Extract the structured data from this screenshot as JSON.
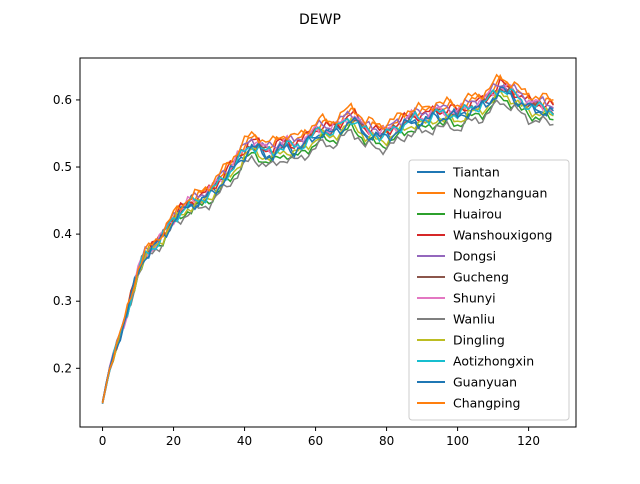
{
  "chart_data": {
    "type": "line",
    "title": "DEWP",
    "xlabel": "",
    "ylabel": "",
    "xlim": [
      -6.35,
      133.35
    ],
    "ylim": [
      0.1125,
      0.6625
    ],
    "xticks": [
      0,
      20,
      40,
      60,
      80,
      100,
      120
    ],
    "yticks": [
      0.2,
      0.3,
      0.4,
      0.5,
      0.6
    ],
    "ytick_labels": [
      "0.2",
      "0.3",
      "0.4",
      "0.5",
      "0.6"
    ],
    "grid": false,
    "legend_position": "lower-right",
    "x": {
      "start": 0,
      "end": 127,
      "step": 1
    },
    "base_anchors": [
      [
        0,
        0.148
      ],
      [
        2,
        0.2
      ],
      [
        4,
        0.235
      ],
      [
        6,
        0.265
      ],
      [
        8,
        0.305
      ],
      [
        10,
        0.345
      ],
      [
        12,
        0.368
      ],
      [
        14,
        0.378
      ],
      [
        16,
        0.39
      ],
      [
        18,
        0.405
      ],
      [
        20,
        0.42
      ],
      [
        22,
        0.432
      ],
      [
        24,
        0.443
      ],
      [
        26,
        0.447
      ],
      [
        28,
        0.45
      ],
      [
        30,
        0.46
      ],
      [
        32,
        0.47
      ],
      [
        34,
        0.48
      ],
      [
        36,
        0.493
      ],
      [
        38,
        0.508
      ],
      [
        40,
        0.52
      ],
      [
        42,
        0.53
      ],
      [
        44,
        0.528
      ],
      [
        46,
        0.52
      ],
      [
        48,
        0.518
      ],
      [
        50,
        0.528
      ],
      [
        52,
        0.532
      ],
      [
        54,
        0.526
      ],
      [
        56,
        0.53
      ],
      [
        58,
        0.54
      ],
      [
        60,
        0.548
      ],
      [
        62,
        0.552
      ],
      [
        64,
        0.55
      ],
      [
        66,
        0.556
      ],
      [
        68,
        0.563
      ],
      [
        70,
        0.57
      ],
      [
        72,
        0.565
      ],
      [
        74,
        0.55
      ],
      [
        76,
        0.548
      ],
      [
        78,
        0.545
      ],
      [
        80,
        0.548
      ],
      [
        82,
        0.552
      ],
      [
        84,
        0.558
      ],
      [
        86,
        0.568
      ],
      [
        88,
        0.57
      ],
      [
        90,
        0.568
      ],
      [
        92,
        0.572
      ],
      [
        94,
        0.58
      ],
      [
        96,
        0.575
      ],
      [
        98,
        0.578
      ],
      [
        100,
        0.576
      ],
      [
        102,
        0.582
      ],
      [
        104,
        0.586
      ],
      [
        106,
        0.589
      ],
      [
        108,
        0.596
      ],
      [
        110,
        0.605
      ],
      [
        112,
        0.615
      ],
      [
        114,
        0.612
      ],
      [
        116,
        0.605
      ],
      [
        118,
        0.595
      ],
      [
        120,
        0.59
      ],
      [
        122,
        0.588
      ],
      [
        124,
        0.585
      ],
      [
        126,
        0.583
      ],
      [
        127,
        0.582
      ]
    ],
    "series": [
      {
        "name": "Tiantan",
        "color": "#1f77b4",
        "offset": 0.0,
        "phase": 0.0
      },
      {
        "name": "Nongzhanguan",
        "color": "#ff7f0e",
        "offset": 0.012,
        "phase": 1.3
      },
      {
        "name": "Huairou",
        "color": "#2ca02c",
        "offset": -0.012,
        "phase": 2.1
      },
      {
        "name": "Wanshouxigong",
        "color": "#d62728",
        "offset": 0.008,
        "phase": 0.7
      },
      {
        "name": "Dongsi",
        "color": "#9467bd",
        "offset": 0.01,
        "phase": 3.4
      },
      {
        "name": "Gucheng",
        "color": "#8c564b",
        "offset": 0.004,
        "phase": 4.2
      },
      {
        "name": "Shunyi",
        "color": "#e377c2",
        "offset": 0.006,
        "phase": 5.0
      },
      {
        "name": "Wanliu",
        "color": "#7f7f7f",
        "offset": -0.018,
        "phase": 2.8
      },
      {
        "name": "Dingling",
        "color": "#bcbd22",
        "offset": -0.006,
        "phase": 1.9
      },
      {
        "name": "Aotizhongxin",
        "color": "#17becf",
        "offset": 0.002,
        "phase": 3.9
      },
      {
        "name": "Guanyuan",
        "color": "#1f77b4",
        "offset": -0.002,
        "phase": 0.4
      },
      {
        "name": "Changping",
        "color": "#ff7f0e",
        "offset": 0.018,
        "phase": 2.5
      }
    ]
  }
}
